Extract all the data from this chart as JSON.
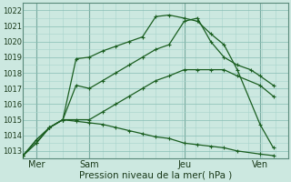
{
  "xlabel": "Pression niveau de la mer( hPa )",
  "ylim": [
    1012.5,
    1022.5
  ],
  "xlim": [
    0,
    14
  ],
  "bg_color": "#cce8e0",
  "grid_minor_color": "#a8d4cc",
  "grid_major_color": "#88bdb4",
  "line_color": "#1a5e20",
  "xtick_positions": [
    0.7,
    3.5,
    8.5,
    12.5
  ],
  "xtick_labels": [
    "Mer",
    "Sam",
    "Jeu",
    "Ven"
  ],
  "ytick_positions": [
    1013,
    1014,
    1015,
    1016,
    1017,
    1018,
    1019,
    1020,
    1021,
    1022
  ],
  "vline_positions": [
    0.7,
    3.5,
    8.5,
    12.5
  ],
  "lines": [
    {
      "x": [
        0.0,
        0.7,
        1.4,
        2.1,
        2.8,
        3.5,
        4.2,
        4.9,
        5.6,
        6.3,
        7.0,
        7.7,
        8.5,
        9.2,
        9.9,
        10.6,
        11.3,
        12.5,
        13.2,
        14.0
      ],
      "y": [
        1012.7,
        1013.7,
        1014.5,
        1015.0,
        1018.9,
        1019.0,
        1019.4,
        1019.7,
        1020.0,
        1020.3,
        1021.6,
        1021.7,
        1021.5,
        1021.3,
        1020.5,
        1019.8,
        1018.2,
        1014.7,
        1013.2,
        null
      ]
    },
    {
      "x": [
        0.0,
        0.7,
        1.4,
        2.1,
        2.8,
        3.5,
        4.2,
        4.9,
        5.6,
        6.3,
        7.0,
        7.7,
        8.5,
        9.2,
        9.9,
        10.6,
        11.3,
        12.0,
        12.5,
        13.2,
        14.0
      ],
      "y": [
        1012.7,
        1013.7,
        1014.5,
        1015.0,
        1017.2,
        1017.0,
        1017.5,
        1018.0,
        1018.5,
        1019.0,
        1019.5,
        1019.8,
        1021.3,
        1021.5,
        1020.0,
        1019.0,
        1018.5,
        1018.2,
        1017.8,
        1017.2,
        null
      ]
    },
    {
      "x": [
        0.0,
        0.7,
        1.4,
        2.1,
        2.8,
        3.5,
        4.2,
        4.9,
        5.6,
        6.3,
        7.0,
        7.7,
        8.5,
        9.2,
        9.9,
        10.6,
        11.3,
        12.5,
        13.2,
        14.0
      ],
      "y": [
        1012.7,
        1013.5,
        1014.5,
        1015.0,
        1015.0,
        1015.0,
        1015.5,
        1016.0,
        1016.5,
        1017.0,
        1017.5,
        1017.8,
        1018.2,
        1018.2,
        1018.2,
        1018.2,
        1017.8,
        1017.2,
        1016.5,
        null
      ]
    },
    {
      "x": [
        0.0,
        0.7,
        1.4,
        2.1,
        2.8,
        3.5,
        4.2,
        4.9,
        5.6,
        6.3,
        7.0,
        7.7,
        8.5,
        9.2,
        9.9,
        10.6,
        11.3,
        12.5,
        13.2,
        14.0
      ],
      "y": [
        1012.7,
        1013.5,
        1014.5,
        1015.0,
        1014.9,
        1014.8,
        1014.7,
        1014.5,
        1014.3,
        1014.1,
        1013.9,
        1013.8,
        1013.5,
        1013.4,
        1013.3,
        1013.2,
        1013.0,
        1012.8,
        1012.7,
        null
      ]
    }
  ]
}
